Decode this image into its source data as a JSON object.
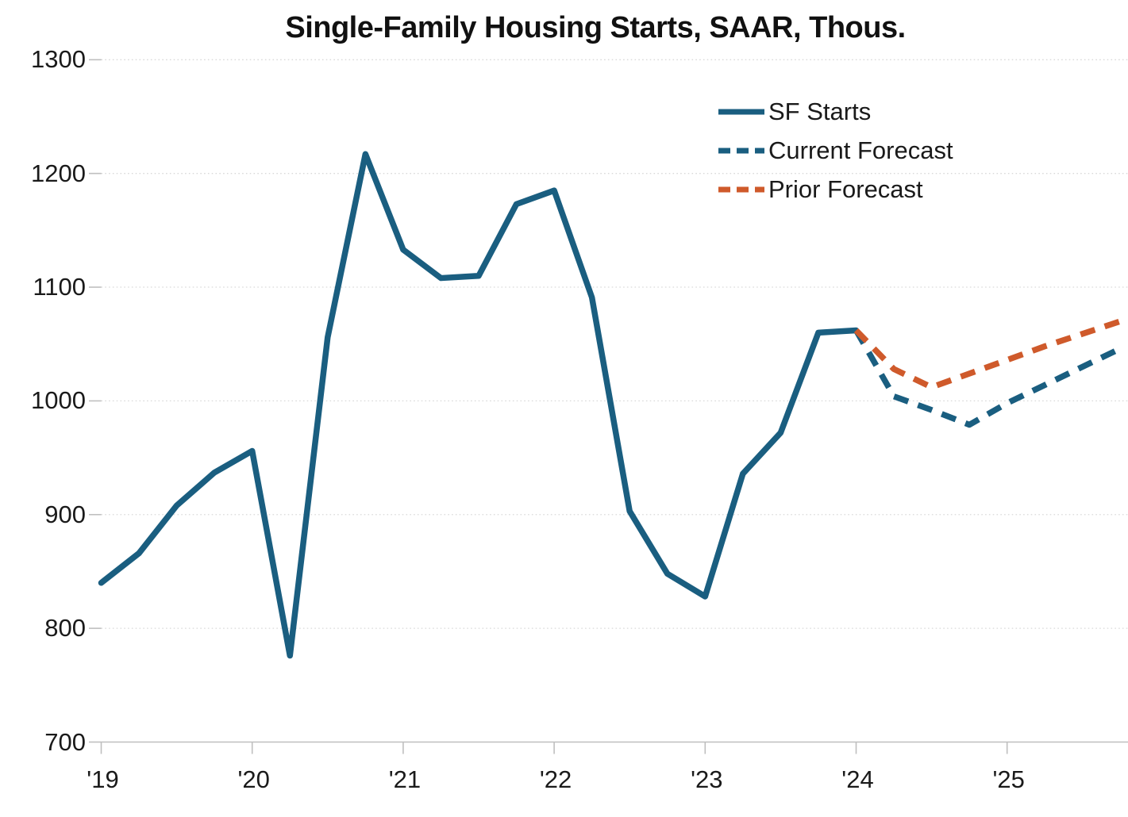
{
  "page": {
    "background": "#ffffff"
  },
  "chart_data": {
    "type": "line",
    "title": "Single-Family Housing Starts, SAAR, Thous.",
    "xlabel": "",
    "ylabel": "",
    "ylim": [
      700,
      1300
    ],
    "y_ticks": [
      700,
      800,
      900,
      1000,
      1100,
      1200,
      1300
    ],
    "x_tick_labels": [
      "'19",
      "'20",
      "'21",
      "'22",
      "'23",
      "'24",
      "'25"
    ],
    "x_frequency": "quarterly",
    "grid": "horizontal dotted gridlines, light gray",
    "legend_position": "upper right inside plot",
    "axis_color": "#bfbfbf",
    "grid_color": "#d9d9d9",
    "text_color": "#1a1a1a",
    "quarters": [
      "2019Q1",
      "2019Q2",
      "2019Q3",
      "2019Q4",
      "2020Q1",
      "2020Q2",
      "2020Q3",
      "2020Q4",
      "2021Q1",
      "2021Q2",
      "2021Q3",
      "2021Q4",
      "2022Q1",
      "2022Q2",
      "2022Q3",
      "2022Q4",
      "2023Q1",
      "2023Q2",
      "2023Q3",
      "2023Q4",
      "2024Q1",
      "2024Q2",
      "2024Q3",
      "2024Q4",
      "2025Q1",
      "2025Q2",
      "2025Q3",
      "2025Q4"
    ],
    "series": [
      {
        "name": "SF Starts",
        "style": "solid",
        "color": "#1A5E80",
        "start_quarter_index": 0,
        "values": [
          840,
          866,
          908,
          937,
          956,
          776,
          1056,
          1217,
          1133,
          1108,
          1110,
          1173,
          1185,
          1091,
          903,
          848,
          828,
          936,
          972,
          1060,
          1062
        ]
      },
      {
        "name": "Current Forecast",
        "style": "dashed",
        "color": "#1A5E80",
        "start_quarter_index": 20,
        "values": [
          1062,
          1004,
          992,
          979,
          998,
          1014,
          1030,
          1046
        ]
      },
      {
        "name": "Prior Forecast",
        "style": "dashed",
        "color": "#CF5A2B",
        "start_quarter_index": 20,
        "values": [
          1062,
          1028,
          1012,
          1024,
          1036,
          1048,
          1059,
          1070
        ]
      }
    ]
  }
}
